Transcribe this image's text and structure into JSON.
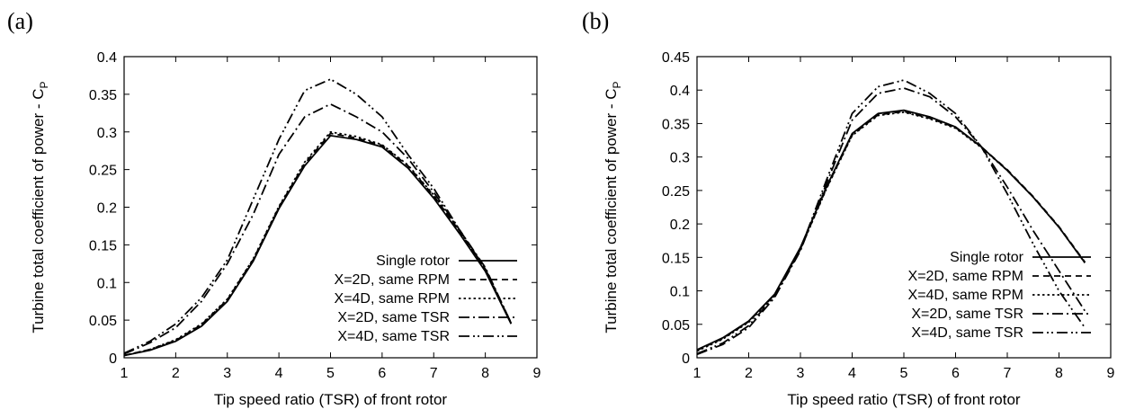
{
  "chart_data": [
    {
      "type": "line",
      "panel_label": "(a)",
      "xlabel": "Tip speed ratio (TSR) of front rotor",
      "ylabel": "Turbine total coefficient of power - C",
      "ylabel_sub": "P",
      "xlim": [
        1,
        9
      ],
      "ylim": [
        0,
        0.4
      ],
      "xticks": [
        "1",
        "2",
        "3",
        "4",
        "5",
        "6",
        "7",
        "8",
        "9"
      ],
      "yticks": [
        "0",
        "0.05",
        "0.1",
        "0.15",
        "0.2",
        "0.25",
        "0.3",
        "0.35",
        "0.4"
      ],
      "grid": false,
      "legend_position": "bottom-right",
      "series": [
        {
          "name": "Single rotor",
          "dash": "solid",
          "x": [
            1,
            1.5,
            2,
            2.5,
            3,
            3.5,
            4,
            4.5,
            5,
            5.5,
            6,
            6.5,
            7,
            7.5,
            8,
            8.5
          ],
          "y": [
            0.003,
            0.01,
            0.022,
            0.042,
            0.075,
            0.128,
            0.198,
            0.255,
            0.295,
            0.29,
            0.28,
            0.252,
            0.212,
            0.165,
            0.115,
            0.045
          ]
        },
        {
          "name": "X=2D, same RPM",
          "dash": "dashed",
          "x": [
            1,
            1.5,
            2,
            2.5,
            3,
            3.5,
            4,
            4.5,
            5,
            5.5,
            6,
            6.5,
            7,
            7.5,
            8,
            8.5
          ],
          "y": [
            0.003,
            0.011,
            0.023,
            0.044,
            0.077,
            0.13,
            0.2,
            0.258,
            0.298,
            0.292,
            0.282,
            0.255,
            0.215,
            0.168,
            0.118,
            0.046
          ]
        },
        {
          "name": "X=4D, same RPM",
          "dash": "dotted",
          "x": [
            1,
            1.5,
            2,
            2.5,
            3,
            3.5,
            4,
            4.5,
            5,
            5.5,
            6,
            6.5,
            7,
            7.5,
            8,
            8.5
          ],
          "y": [
            0.003,
            0.011,
            0.024,
            0.045,
            0.078,
            0.131,
            0.201,
            0.26,
            0.3,
            0.294,
            0.283,
            0.256,
            0.216,
            0.169,
            0.119,
            0.046
          ]
        },
        {
          "name": "X=2D, same TSR",
          "dash": "dashdot",
          "x": [
            1,
            1.5,
            2,
            2.5,
            3,
            3.5,
            4,
            4.5,
            5,
            5.5,
            6,
            6.5,
            7,
            7.5,
            8,
            8.5
          ],
          "y": [
            0.005,
            0.02,
            0.04,
            0.075,
            0.125,
            0.19,
            0.27,
            0.32,
            0.337,
            0.32,
            0.3,
            0.265,
            0.22,
            0.17,
            0.12,
            0.046
          ]
        },
        {
          "name": "X=4D, same TSR",
          "dash": "dashdotdot",
          "x": [
            1,
            1.5,
            2,
            2.5,
            3,
            3.5,
            4,
            4.5,
            5,
            5.5,
            6,
            6.5,
            7,
            7.5,
            8,
            8.5
          ],
          "y": [
            0.006,
            0.022,
            0.045,
            0.08,
            0.13,
            0.21,
            0.29,
            0.355,
            0.37,
            0.35,
            0.32,
            0.27,
            0.225,
            0.17,
            0.118,
            0.046
          ]
        }
      ],
      "legend": {
        "entries": [
          "Single rotor",
          "X=2D, same RPM",
          "X=4D, same RPM",
          "X=2D, same TSR",
          "X=4D, same TSR"
        ]
      }
    },
    {
      "type": "line",
      "panel_label": "(b)",
      "xlabel": "Tip speed ratio (TSR) of front rotor",
      "ylabel": "Turbine total coefficient of power - C",
      "ylabel_sub": "P",
      "xlim": [
        1,
        9
      ],
      "ylim": [
        0,
        0.45
      ],
      "xticks": [
        "1",
        "2",
        "3",
        "4",
        "5",
        "6",
        "7",
        "8",
        "9"
      ],
      "yticks": [
        "0",
        "0.05",
        "0.1",
        "0.15",
        "0.2",
        "0.25",
        "0.3",
        "0.35",
        "0.4",
        "0.45"
      ],
      "grid": false,
      "legend_position": "bottom-right",
      "series": [
        {
          "name": "Single rotor",
          "dash": "solid",
          "x": [
            1,
            1.5,
            2,
            2.5,
            3,
            3.5,
            4,
            4.5,
            5,
            5.5,
            6,
            6.5,
            7,
            7.5,
            8,
            8.5
          ],
          "y": [
            0.012,
            0.03,
            0.055,
            0.095,
            0.165,
            0.255,
            0.335,
            0.365,
            0.37,
            0.36,
            0.345,
            0.315,
            0.28,
            0.24,
            0.195,
            0.142
          ]
        },
        {
          "name": "X=2D, same RPM",
          "dash": "dashed",
          "x": [
            1,
            1.5,
            2,
            2.5,
            3,
            3.5,
            4,
            4.5,
            5,
            5.5,
            6,
            6.5,
            7,
            7.5,
            8,
            8.5
          ],
          "y": [
            0.011,
            0.029,
            0.054,
            0.094,
            0.163,
            0.253,
            0.333,
            0.363,
            0.368,
            0.358,
            0.344,
            0.315,
            0.281,
            0.241,
            0.196,
            0.143
          ]
        },
        {
          "name": "X=4D, same RPM",
          "dash": "dotted",
          "x": [
            1,
            1.5,
            2,
            2.5,
            3,
            3.5,
            4,
            4.5,
            5,
            5.5,
            6,
            6.5,
            7,
            7.5,
            8,
            8.5
          ],
          "y": [
            0.01,
            0.028,
            0.053,
            0.093,
            0.162,
            0.252,
            0.332,
            0.362,
            0.367,
            0.357,
            0.343,
            0.314,
            0.28,
            0.24,
            0.195,
            0.142
          ]
        },
        {
          "name": "X=2D, same TSR",
          "dash": "dashdot",
          "x": [
            1,
            1.5,
            2,
            2.5,
            3,
            3.5,
            4,
            4.5,
            5,
            5.5,
            6,
            6.5,
            7,
            7.5,
            8,
            8.5
          ],
          "y": [
            0.005,
            0.02,
            0.045,
            0.09,
            0.16,
            0.26,
            0.355,
            0.395,
            0.403,
            0.39,
            0.36,
            0.315,
            0.255,
            0.19,
            0.13,
            0.07
          ]
        },
        {
          "name": "X=4D, same TSR",
          "dash": "dashdotdot",
          "x": [
            1,
            1.5,
            2,
            2.5,
            3,
            3.5,
            4,
            4.5,
            5,
            5.5,
            6,
            6.5,
            7,
            7.5,
            8,
            8.5
          ],
          "y": [
            0.006,
            0.022,
            0.048,
            0.092,
            0.162,
            0.265,
            0.365,
            0.405,
            0.415,
            0.395,
            0.365,
            0.315,
            0.245,
            0.17,
            0.1,
            0.045
          ]
        }
      ],
      "legend": {
        "entries": [
          "Single rotor",
          "X=2D, same RPM",
          "X=4D, same RPM",
          "X=2D, same TSR",
          "X=4D, same TSR"
        ]
      }
    }
  ]
}
